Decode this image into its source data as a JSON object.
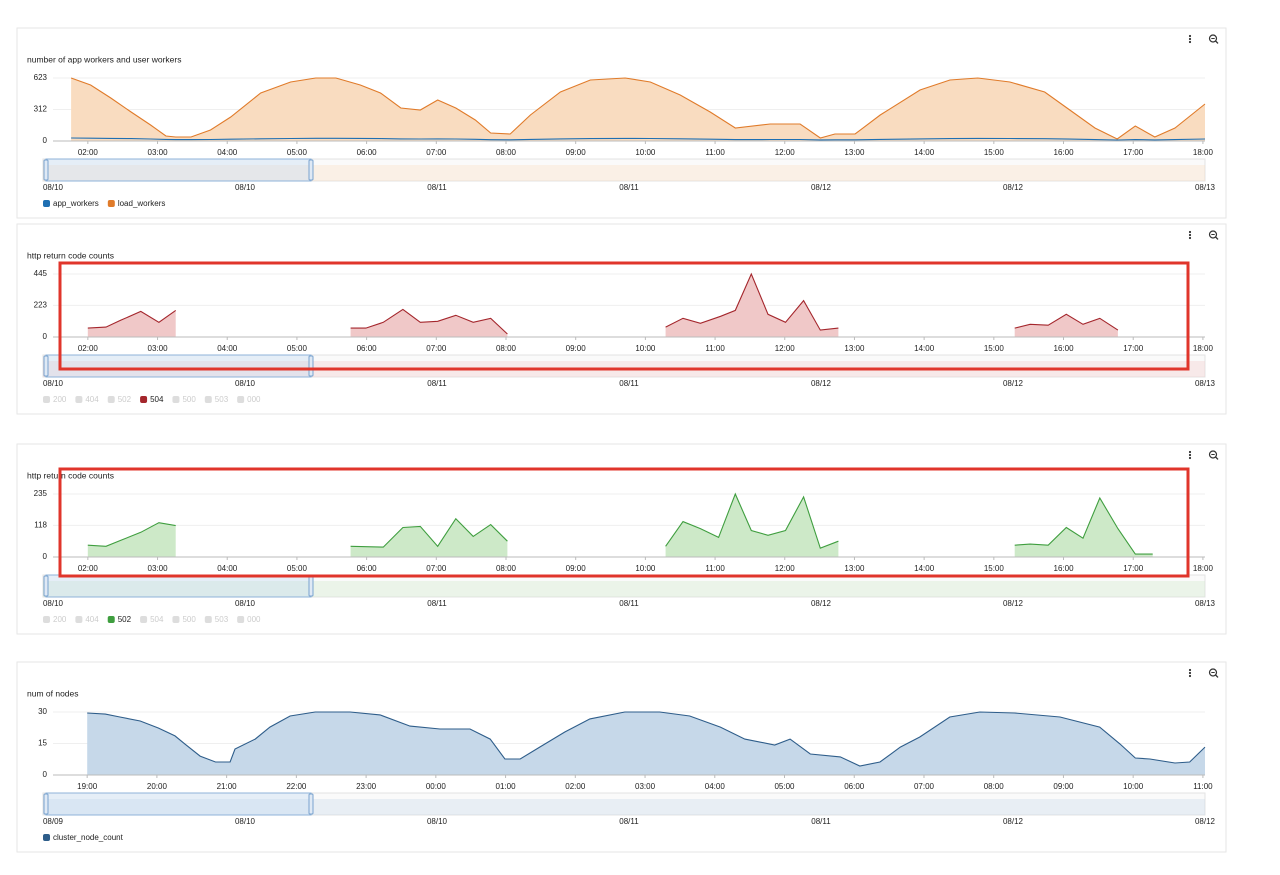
{
  "chart_data": [
    {
      "type": "area",
      "title": "number of app workers and user workers",
      "x": [
        1.76,
        2.04,
        2.33,
        2.62,
        2.9,
        3.12,
        3.26,
        3.48,
        3.76,
        4.05,
        4.48,
        4.91,
        5.27,
        5.56,
        5.91,
        6.2,
        6.49,
        6.77,
        7.02,
        7.28,
        7.56,
        7.78,
        8.06,
        8.35,
        8.78,
        9.21,
        9.71,
        10.07,
        10.5,
        10.93,
        11.29,
        11.79,
        12.22,
        12.51,
        12.72,
        13.01,
        13.37,
        13.94,
        14.37,
        14.77,
        15.23,
        15.73,
        16.09,
        16.45,
        16.77,
        17.03,
        17.31,
        17.6,
        18.03
      ],
      "xlim": [
        1.5,
        18.03
      ],
      "xticks": [
        {
          "value": 2,
          "label": "02:00"
        },
        {
          "value": 3,
          "label": "03:00"
        },
        {
          "value": 4,
          "label": "04:00"
        },
        {
          "value": 5,
          "label": "05:00"
        },
        {
          "value": 6,
          "label": "06:00"
        },
        {
          "value": 7,
          "label": "07:00"
        },
        {
          "value": 8,
          "label": "08:00"
        },
        {
          "value": 9,
          "label": "09:00"
        },
        {
          "value": 10,
          "label": "10:00"
        },
        {
          "value": 11,
          "label": "11:00"
        },
        {
          "value": 12,
          "label": "12:00"
        },
        {
          "value": 13,
          "label": "13:00"
        },
        {
          "value": 14,
          "label": "14:00"
        },
        {
          "value": 15,
          "label": "15:00"
        },
        {
          "value": 16,
          "label": "16:00"
        },
        {
          "value": 17,
          "label": "17:00"
        },
        {
          "value": 18,
          "label": "18:00"
        }
      ],
      "ylim": [
        0,
        623
      ],
      "yticks": [
        0,
        312,
        623
      ],
      "grid": true,
      "series": [
        {
          "name": "load_workers",
          "color": "#e07b2a",
          "fill": "#f9dcc0",
          "visible": true,
          "values": [
            623,
            554,
            425,
            287,
            158,
            49,
            40,
            40,
            109,
            237,
            475,
            583,
            623,
            623,
            554,
            475,
            326,
            307,
            405,
            326,
            208,
            79,
            69,
            257,
            485,
            603,
            623,
            583,
            455,
            287,
            129,
            168,
            168,
            30,
            69,
            69,
            257,
            504,
            603,
            623,
            583,
            485,
            307,
            129,
            20,
            148,
            40,
            129,
            366
          ]
        },
        {
          "name": "app_workers",
          "color": "#1f6fb2",
          "visible": true,
          "values": [
            30,
            28,
            26,
            24,
            20,
            16,
            14,
            14,
            15,
            18,
            22,
            25,
            27,
            27,
            26,
            24,
            21,
            20,
            21,
            20,
            17,
            13,
            12,
            16,
            21,
            24,
            26,
            25,
            22,
            18,
            14,
            15,
            15,
            11,
            12,
            12,
            16,
            21,
            24,
            26,
            25,
            23,
            19,
            14,
            10,
            14,
            11,
            14,
            20
          ]
        }
      ],
      "legend_order": [
        1,
        0
      ],
      "navigator_labels": [
        "08/10",
        "08/10",
        "08/11",
        "08/11",
        "08/12",
        "08/12",
        "08/13"
      ]
    },
    {
      "type": "area",
      "title": "http return code counts",
      "x": [
        2.0,
        2.26,
        2.47,
        2.76,
        3.02,
        3.26,
        4.5,
        5.77,
        5.99,
        6.24,
        6.52,
        6.77,
        7.02,
        7.28,
        7.53,
        7.78,
        8.02,
        9.2,
        10.29,
        10.54,
        10.79,
        11.08,
        11.29,
        11.52,
        11.76,
        12.01,
        12.27,
        12.51,
        12.77,
        14.0,
        15.3,
        15.52,
        15.78,
        16.04,
        16.28,
        16.52,
        16.78
      ],
      "xlim": [
        1.5,
        18.03
      ],
      "xticks": [
        {
          "value": 2,
          "label": "02:00"
        },
        {
          "value": 3,
          "label": "03:00"
        },
        {
          "value": 4,
          "label": "04:00"
        },
        {
          "value": 5,
          "label": "05:00"
        },
        {
          "value": 6,
          "label": "06:00"
        },
        {
          "value": 7,
          "label": "07:00"
        },
        {
          "value": 8,
          "label": "08:00"
        },
        {
          "value": 9,
          "label": "09:00"
        },
        {
          "value": 10,
          "label": "10:00"
        },
        {
          "value": 11,
          "label": "11:00"
        },
        {
          "value": 12,
          "label": "12:00"
        },
        {
          "value": 13,
          "label": "13:00"
        },
        {
          "value": 14,
          "label": "14:00"
        },
        {
          "value": 15,
          "label": "15:00"
        },
        {
          "value": 16,
          "label": "16:00"
        },
        {
          "value": 17,
          "label": "17:00"
        },
        {
          "value": 18,
          "label": "18:00"
        }
      ],
      "ylim": [
        0,
        445
      ],
      "yticks": [
        0,
        223,
        445
      ],
      "grid": true,
      "series": [
        {
          "name": "200",
          "color": "#dddddd",
          "visible": false
        },
        {
          "name": "404",
          "color": "#dddddd",
          "visible": false
        },
        {
          "name": "502",
          "color": "#dddddd",
          "visible": false
        },
        {
          "name": "504",
          "color": "#a4262c",
          "fill": "#f0c8c8",
          "visible": true,
          "values": [
            63,
            70,
            118,
            181,
            104,
            188,
            null,
            63,
            63,
            104,
            195,
            104,
            111,
            153,
            104,
            132,
            21,
            null,
            70,
            132,
            97,
            146,
            188,
            445,
            160,
            104,
            257,
            49,
            63,
            null,
            63,
            90,
            83,
            160,
            90,
            132,
            49
          ]
        },
        {
          "name": "500",
          "color": "#dddddd",
          "visible": false
        },
        {
          "name": "503",
          "color": "#dddddd",
          "visible": false
        },
        {
          "name": "000",
          "color": "#dddddd",
          "visible": false
        }
      ],
      "legend_order": [
        0,
        1,
        2,
        3,
        4,
        5,
        6
      ],
      "navigator_labels": [
        "08/10",
        "08/10",
        "08/11",
        "08/11",
        "08/12",
        "08/12",
        "08/13"
      ]
    },
    {
      "type": "area",
      "title": "http return code counts",
      "x": [
        2.0,
        2.26,
        2.47,
        2.76,
        3.02,
        3.26,
        4.5,
        5.77,
        6.24,
        6.52,
        6.77,
        7.02,
        7.28,
        7.53,
        7.78,
        8.02,
        9.2,
        10.29,
        10.54,
        10.79,
        11.05,
        11.29,
        11.52,
        11.76,
        12.01,
        12.27,
        12.51,
        12.77,
        14.0,
        15.3,
        15.52,
        15.78,
        16.04,
        16.28,
        16.52,
        16.78,
        17.03,
        17.28
      ],
      "xlim": [
        1.5,
        18.03
      ],
      "xticks": [
        {
          "value": 2,
          "label": "02:00"
        },
        {
          "value": 3,
          "label": "03:00"
        },
        {
          "value": 4,
          "label": "04:00"
        },
        {
          "value": 5,
          "label": "05:00"
        },
        {
          "value": 6,
          "label": "06:00"
        },
        {
          "value": 7,
          "label": "07:00"
        },
        {
          "value": 8,
          "label": "08:00"
        },
        {
          "value": 9,
          "label": "09:00"
        },
        {
          "value": 10,
          "label": "10:00"
        },
        {
          "value": 11,
          "label": "11:00"
        },
        {
          "value": 12,
          "label": "12:00"
        },
        {
          "value": 13,
          "label": "13:00"
        },
        {
          "value": 14,
          "label": "14:00"
        },
        {
          "value": 15,
          "label": "15:00"
        },
        {
          "value": 16,
          "label": "16:00"
        },
        {
          "value": 17,
          "label": "17:00"
        },
        {
          "value": 18,
          "label": "18:00"
        }
      ],
      "ylim": [
        0,
        235
      ],
      "yticks": [
        0,
        118,
        235
      ],
      "grid": true,
      "series": [
        {
          "name": "200",
          "color": "#dddddd",
          "visible": false
        },
        {
          "name": "404",
          "color": "#dddddd",
          "visible": false
        },
        {
          "name": "502",
          "color": "#3f9e3f",
          "fill": "#cde9c8",
          "visible": true,
          "values": [
            44,
            40,
            62,
            92,
            128,
            117,
            null,
            40,
            37,
            110,
            114,
            40,
            143,
            77,
            121,
            59,
            null,
            40,
            132,
            106,
            73,
            235,
            99,
            81,
            99,
            224,
            33,
            59,
            null,
            44,
            48,
            44,
            110,
            70,
            220,
            106,
            11,
            11
          ]
        },
        {
          "name": "504",
          "color": "#dddddd",
          "visible": false
        },
        {
          "name": "500",
          "color": "#dddddd",
          "visible": false
        },
        {
          "name": "503",
          "color": "#dddddd",
          "visible": false
        },
        {
          "name": "000",
          "color": "#dddddd",
          "visible": false
        }
      ],
      "legend_order": [
        0,
        1,
        2,
        3,
        4,
        5,
        6
      ],
      "navigator_labels": [
        "08/10",
        "08/10",
        "08/11",
        "08/11",
        "08/12",
        "08/12",
        "08/13"
      ]
    },
    {
      "type": "area",
      "title": "num of nodes",
      "x": [
        19.0,
        19.26,
        19.47,
        19.76,
        20.02,
        20.26,
        20.4,
        20.62,
        20.84,
        21.05,
        21.12,
        21.41,
        21.62,
        21.91,
        22.27,
        22.77,
        23.2,
        23.63,
        24.06,
        24.49,
        24.78,
        24.99,
        25.21,
        25.49,
        25.85,
        26.21,
        26.71,
        27.21,
        27.64,
        28.08,
        28.43,
        28.86,
        29.08,
        29.37,
        29.8,
        30.08,
        30.37,
        30.66,
        30.94,
        31.37,
        31.8,
        32.3,
        32.95,
        33.52,
        33.81,
        34.03,
        34.24,
        34.6,
        34.81,
        35.03
      ],
      "xlim": [
        18.51,
        35.03
      ],
      "xticks": [
        {
          "value": 19,
          "label": "19:00"
        },
        {
          "value": 20,
          "label": "20:00"
        },
        {
          "value": 21,
          "label": "21:00"
        },
        {
          "value": 22,
          "label": "22:00"
        },
        {
          "value": 23,
          "label": "23:00"
        },
        {
          "value": 24,
          "label": "00:00"
        },
        {
          "value": 25,
          "label": "01:00"
        },
        {
          "value": 26,
          "label": "02:00"
        },
        {
          "value": 27,
          "label": "03:00"
        },
        {
          "value": 28,
          "label": "04:00"
        },
        {
          "value": 29,
          "label": "05:00"
        },
        {
          "value": 30,
          "label": "06:00"
        },
        {
          "value": 31,
          "label": "07:00"
        },
        {
          "value": 32,
          "label": "08:00"
        },
        {
          "value": 33,
          "label": "09:00"
        },
        {
          "value": 34,
          "label": "10:00"
        },
        {
          "value": 35,
          "label": "11:00"
        }
      ],
      "ylim": [
        0,
        30
      ],
      "yticks": [
        0,
        15,
        30
      ],
      "grid": true,
      "series": [
        {
          "name": "cluster_node_count",
          "color": "#2e5d8a",
          "fill": "#c6d8e9",
          "visible": true,
          "values": [
            29.5,
            29,
            27.6,
            25.7,
            22.4,
            18.6,
            14.8,
            9,
            6.2,
            6.2,
            12.4,
            17.1,
            22.8,
            28.1,
            30,
            30,
            28.6,
            23.3,
            21.9,
            21.9,
            17.1,
            7.6,
            7.6,
            13.3,
            20.5,
            26.7,
            30,
            30,
            28.1,
            22.8,
            17.1,
            14.3,
            17.1,
            10,
            8.6,
            4.3,
            6.2,
            13.3,
            18.1,
            27.6,
            30,
            29.5,
            27.6,
            22.8,
            14.8,
            8.1,
            7.6,
            5.7,
            6.2,
            13.3
          ]
        }
      ],
      "legend_order": [
        0
      ],
      "navigator_labels": [
        "08/09",
        "08/10",
        "08/10",
        "08/11",
        "08/11",
        "08/12",
        "08/12"
      ]
    }
  ]
}
